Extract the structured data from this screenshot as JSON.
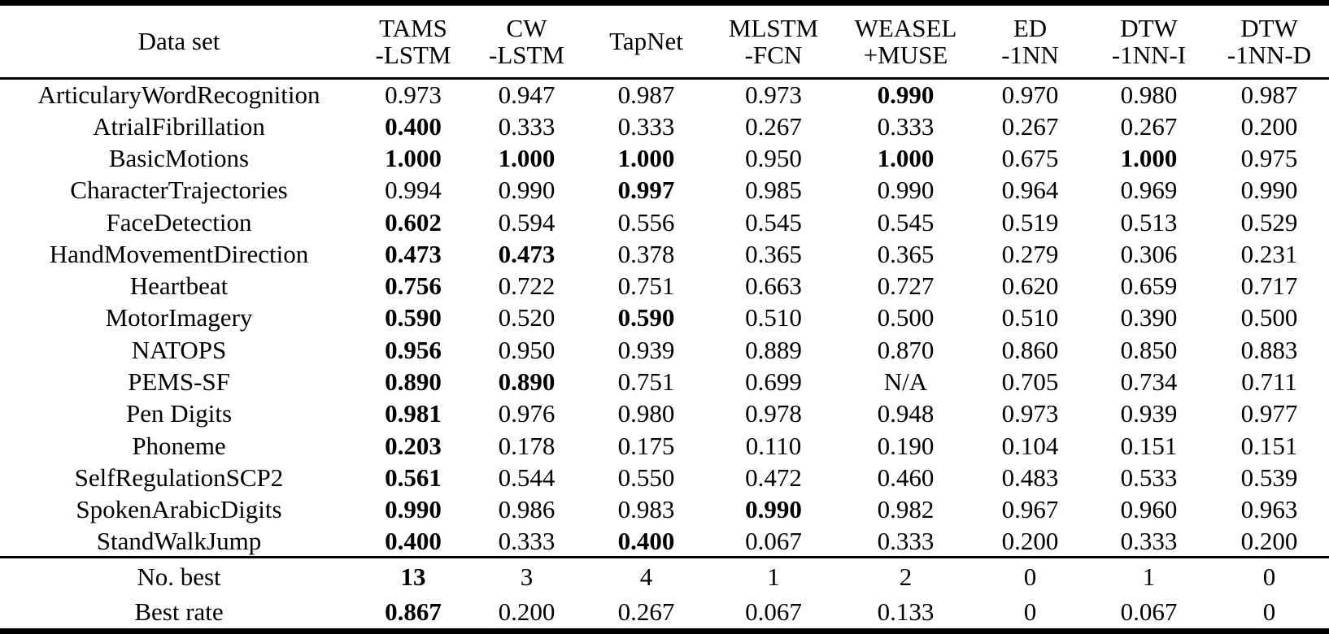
{
  "table": {
    "header": {
      "dataset_label": "Data set",
      "methods": [
        {
          "line1": "TAMS",
          "line2": "-LSTM"
        },
        {
          "line1": "CW",
          "line2": "-LSTM"
        },
        {
          "line1": "TapNet",
          "line2": ""
        },
        {
          "line1": "MLSTM",
          "line2": "-FCN"
        },
        {
          "line1": "WEASEL",
          "line2": "+MUSE"
        },
        {
          "line1": "ED",
          "line2": "-1NN"
        },
        {
          "line1": "DTW",
          "line2": "-1NN-I"
        },
        {
          "line1": "DTW",
          "line2": "-1NN-D"
        }
      ]
    },
    "rows": [
      {
        "dataset": "ArticularyWordRecognition",
        "values": [
          "0.973",
          "0.947",
          "0.987",
          "0.973",
          "0.990",
          "0.970",
          "0.980",
          "0.987"
        ],
        "bold": [
          4
        ]
      },
      {
        "dataset": "AtrialFibrillation",
        "values": [
          "0.400",
          "0.333",
          "0.333",
          "0.267",
          "0.333",
          "0.267",
          "0.267",
          "0.200"
        ],
        "bold": [
          0
        ]
      },
      {
        "dataset": "BasicMotions",
        "values": [
          "1.000",
          "1.000",
          "1.000",
          "0.950",
          "1.000",
          "0.675",
          "1.000",
          "0.975"
        ],
        "bold": [
          0,
          1,
          2,
          4,
          6
        ]
      },
      {
        "dataset": "CharacterTrajectories",
        "values": [
          "0.994",
          "0.990",
          "0.997",
          "0.985",
          "0.990",
          "0.964",
          "0.969",
          "0.990"
        ],
        "bold": [
          2
        ]
      },
      {
        "dataset": "FaceDetection",
        "values": [
          "0.602",
          "0.594",
          "0.556",
          "0.545",
          "0.545",
          "0.519",
          "0.513",
          "0.529"
        ],
        "bold": [
          0
        ]
      },
      {
        "dataset": "HandMovementDirection",
        "values": [
          "0.473",
          "0.473",
          "0.378",
          "0.365",
          "0.365",
          "0.279",
          "0.306",
          "0.231"
        ],
        "bold": [
          0,
          1
        ]
      },
      {
        "dataset": "Heartbeat",
        "values": [
          "0.756",
          "0.722",
          "0.751",
          "0.663",
          "0.727",
          "0.620",
          "0.659",
          "0.717"
        ],
        "bold": [
          0
        ]
      },
      {
        "dataset": "MotorImagery",
        "values": [
          "0.590",
          "0.520",
          "0.590",
          "0.510",
          "0.500",
          "0.510",
          "0.390",
          "0.500"
        ],
        "bold": [
          0,
          2
        ]
      },
      {
        "dataset": "NATOPS",
        "values": [
          "0.956",
          "0.950",
          "0.939",
          "0.889",
          "0.870",
          "0.860",
          "0.850",
          "0.883"
        ],
        "bold": [
          0
        ]
      },
      {
        "dataset": "PEMS-SF",
        "values": [
          "0.890",
          "0.890",
          "0.751",
          "0.699",
          "N/A",
          "0.705",
          "0.734",
          "0.711"
        ],
        "bold": [
          0,
          1
        ]
      },
      {
        "dataset": "Pen Digits",
        "values": [
          "0.981",
          "0.976",
          "0.980",
          "0.978",
          "0.948",
          "0.973",
          "0.939",
          "0.977"
        ],
        "bold": [
          0
        ]
      },
      {
        "dataset": "Phoneme",
        "values": [
          "0.203",
          "0.178",
          "0.175",
          "0.110",
          "0.190",
          "0.104",
          "0.151",
          "0.151"
        ],
        "bold": [
          0
        ]
      },
      {
        "dataset": "SelfRegulationSCP2",
        "values": [
          "0.561",
          "0.544",
          "0.550",
          "0.472",
          "0.460",
          "0.483",
          "0.533",
          "0.539"
        ],
        "bold": [
          0
        ]
      },
      {
        "dataset": "SpokenArabicDigits",
        "values": [
          "0.990",
          "0.986",
          "0.983",
          "0.990",
          "0.982",
          "0.967",
          "0.960",
          "0.963"
        ],
        "bold": [
          0,
          3
        ]
      },
      {
        "dataset": "StandWalkJump",
        "values": [
          "0.400",
          "0.333",
          "0.400",
          "0.067",
          "0.333",
          "0.200",
          "0.333",
          "0.200"
        ],
        "bold": [
          0,
          2
        ]
      }
    ],
    "summary": [
      {
        "label": "No. best",
        "values": [
          "13",
          "3",
          "4",
          "1",
          "2",
          "0",
          "1",
          "0"
        ],
        "bold": [
          0
        ]
      },
      {
        "label": "Best rate",
        "values": [
          "0.867",
          "0.200",
          "0.267",
          "0.067",
          "0.133",
          "0",
          "0.067",
          "0"
        ],
        "bold": [
          0
        ]
      }
    ]
  }
}
